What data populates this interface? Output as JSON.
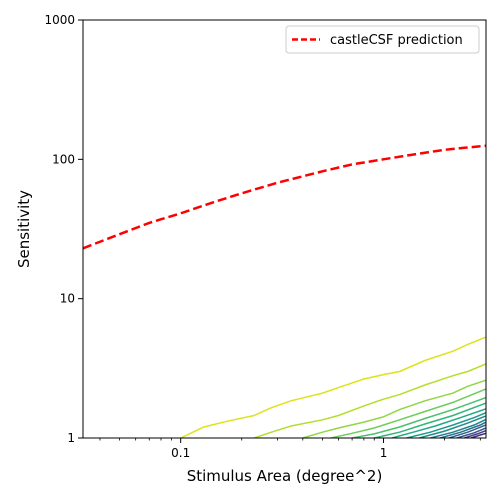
{
  "chart_data": {
    "type": "line",
    "xlabel": "Stimulus Area (degree^2)",
    "ylabel": "Sensitivity",
    "xscale": "log",
    "yscale": "log",
    "xlim": [
      0.033,
      3.2
    ],
    "ylim": [
      1,
      1000
    ],
    "xticks": [
      {
        "value": 0.1,
        "label": "0.1"
      },
      {
        "value": 1,
        "label": "1"
      }
    ],
    "yticks": [
      {
        "value": 1,
        "label": "1"
      },
      {
        "value": 10,
        "label": "10"
      },
      {
        "value": 100,
        "label": "100"
      },
      {
        "value": 1000,
        "label": "1000"
      }
    ],
    "grid": false,
    "legend_position": "top-right",
    "series": [
      {
        "name": "castleCSF prediction",
        "color": "#ff0000",
        "style": "dashed",
        "x": [
          0.033,
          0.05,
          0.07,
          0.1,
          0.15,
          0.2,
          0.3,
          0.5,
          0.7,
          1.0,
          1.5,
          2.0,
          2.5,
          3.2
        ],
        "y": [
          23,
          29,
          35,
          41,
          50,
          57,
          68,
          82,
          92,
          100,
          110,
          117,
          121,
          125
        ]
      }
    ],
    "contours": [
      {
        "color": "#dde318",
        "x": [
          0.1,
          0.13,
          0.17,
          0.23,
          0.28,
          0.35,
          0.5,
          0.6,
          0.8,
          1.0,
          1.2,
          1.6,
          2.2,
          2.6,
          3.2
        ],
        "y": [
          1.0,
          1.2,
          1.32,
          1.45,
          1.65,
          1.85,
          2.1,
          2.3,
          2.65,
          2.85,
          3.0,
          3.6,
          4.2,
          4.7,
          5.3
        ]
      },
      {
        "color": "#b5de2b",
        "x": [
          0.23,
          0.28,
          0.35,
          0.5,
          0.6,
          0.8,
          1.0,
          1.2,
          1.6,
          2.2,
          2.6,
          3.2
        ],
        "y": [
          1.0,
          1.1,
          1.22,
          1.35,
          1.45,
          1.7,
          1.9,
          2.05,
          2.4,
          2.8,
          3.0,
          3.4
        ]
      },
      {
        "color": "#8fd744",
        "x": [
          0.4,
          0.5,
          0.6,
          0.8,
          1.0,
          1.2,
          1.6,
          2.2,
          2.6,
          3.2
        ],
        "y": [
          1.0,
          1.1,
          1.18,
          1.3,
          1.42,
          1.6,
          1.85,
          2.1,
          2.35,
          2.6
        ]
      },
      {
        "color": "#6ccd5a",
        "x": [
          0.55,
          0.7,
          0.9,
          1.2,
          1.6,
          2.2,
          3.2
        ],
        "y": [
          1.0,
          1.08,
          1.18,
          1.35,
          1.55,
          1.8,
          2.25
        ]
      },
      {
        "color": "#4ac16d",
        "x": [
          0.7,
          0.9,
          1.2,
          1.6,
          2.2,
          3.2
        ],
        "y": [
          1.0,
          1.07,
          1.2,
          1.38,
          1.6,
          1.95
        ]
      },
      {
        "color": "#32b67a",
        "x": [
          0.9,
          1.2,
          1.6,
          2.2,
          3.2
        ],
        "y": [
          1.0,
          1.1,
          1.26,
          1.45,
          1.78
        ]
      },
      {
        "color": "#22a884",
        "x": [
          1.1,
          1.4,
          1.8,
          2.4,
          3.2
        ],
        "y": [
          1.0,
          1.1,
          1.22,
          1.4,
          1.62
        ]
      },
      {
        "color": "#1f9a8a",
        "x": [
          1.3,
          1.7,
          2.2,
          2.8,
          3.2
        ],
        "y": [
          1.0,
          1.1,
          1.24,
          1.4,
          1.52
        ]
      },
      {
        "color": "#228c8d",
        "x": [
          1.5,
          2.0,
          2.6,
          3.2
        ],
        "y": [
          1.0,
          1.12,
          1.28,
          1.44
        ]
      },
      {
        "color": "#277f8e",
        "x": [
          1.7,
          2.2,
          2.8,
          3.2
        ],
        "y": [
          1.0,
          1.1,
          1.24,
          1.36
        ]
      },
      {
        "color": "#2c718e",
        "x": [
          1.9,
          2.4,
          3.0,
          3.2
        ],
        "y": [
          1.0,
          1.1,
          1.24,
          1.3
        ]
      },
      {
        "color": "#33638d",
        "x": [
          2.1,
          2.6,
          3.2
        ],
        "y": [
          1.0,
          1.1,
          1.24
        ]
      },
      {
        "color": "#3a548c",
        "x": [
          2.3,
          2.8,
          3.2
        ],
        "y": [
          1.0,
          1.09,
          1.18
        ]
      },
      {
        "color": "#424086",
        "x": [
          2.5,
          2.9,
          3.2
        ],
        "y": [
          1.0,
          1.07,
          1.13
        ]
      },
      {
        "color": "#472d7b",
        "x": [
          2.7,
          3.0,
          3.2
        ],
        "y": [
          1.0,
          1.05,
          1.08
        ]
      }
    ]
  }
}
